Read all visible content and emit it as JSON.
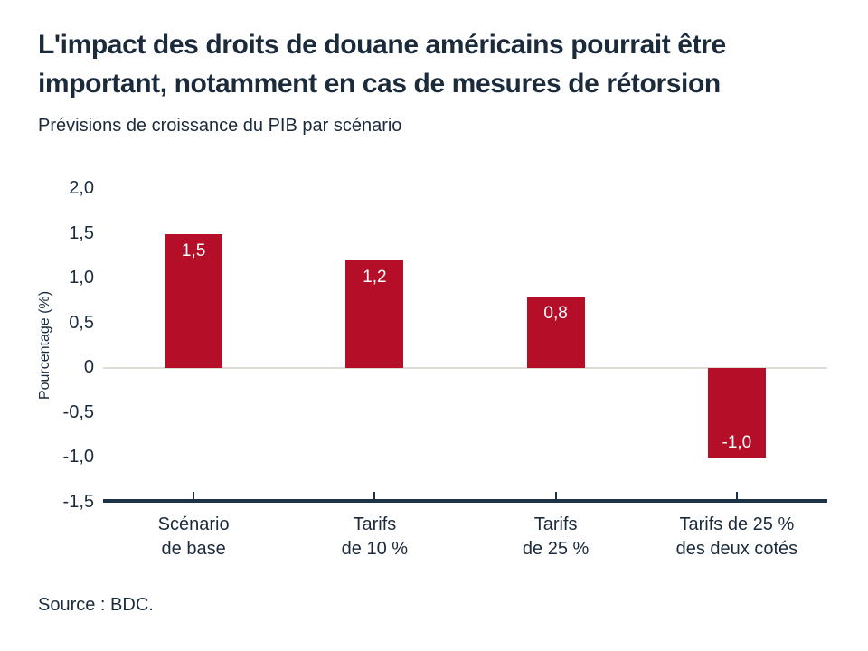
{
  "header": {
    "title_lines": [
      "L'impact des droits de douane américains pourrait être",
      "important, notamment en cas de mesures de rétorsion"
    ],
    "subtitle": "Prévisions de croissance du PIB par scénario"
  },
  "chart_data": {
    "type": "bar",
    "title": "Prévisions de croissance du PIB par scénario",
    "categories": [
      "Scénario\nde base",
      "Tarifs\nde 10 %",
      "Tarifs\nde 25 %",
      "Tarifs de 25 %\ndes deux cotés"
    ],
    "values": [
      1.5,
      1.2,
      0.8,
      -1.0
    ],
    "value_labels": [
      "1,5",
      "1,2",
      "0,8",
      "-1,0"
    ],
    "xlabel": "",
    "ylabel": "Pourcentage (%)",
    "ylim": [
      -1.5,
      2.0
    ],
    "yticks": [
      2.0,
      1.5,
      1.0,
      0.5,
      0.0,
      -0.5,
      -1.0,
      -1.5
    ],
    "ytick_labels": [
      "2,0",
      "1,5",
      "1,0",
      "0,5",
      "0",
      "-0,5",
      "-1,0",
      "-1,5"
    ],
    "grid": false,
    "legend": "none",
    "colors": {
      "bar": "#B40E29",
      "axis": "#1E3247",
      "zero_line": "#DDDDD8",
      "text": "#1B2B3C",
      "value_label": "#FFFFFF"
    }
  },
  "footer": {
    "source": "Source : BDC."
  }
}
